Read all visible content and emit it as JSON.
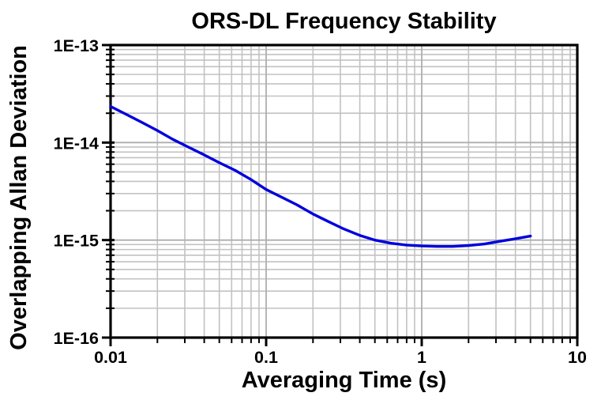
{
  "chart_data": {
    "type": "line",
    "title": "ORS-DL Frequency Stability",
    "xlabel": "Averaging Time (s)",
    "ylabel": "Overlapping Allan Deviation",
    "x_scale": "log",
    "y_scale": "log",
    "xlim": [
      0.01,
      10
    ],
    "ylim": [
      1e-16,
      1e-13
    ],
    "grid": "major and minor log gridlines, gray, full grid",
    "legend_position": "none",
    "x_ticks": [
      {
        "label": "0.01",
        "value": 0.01
      },
      {
        "label": "0.1",
        "value": 0.1
      },
      {
        "label": "1",
        "value": 1
      },
      {
        "label": "10",
        "value": 10
      }
    ],
    "y_ticks": [
      {
        "label": "1E-13",
        "value": 1e-13
      },
      {
        "label": "1E-14",
        "value": 1e-14
      },
      {
        "label": "1E-15",
        "value": 1e-15
      },
      {
        "label": "1E-16",
        "value": 1e-16
      }
    ],
    "series": [
      {
        "name": "overlapping-allan-deviation",
        "color": "#0000dd",
        "x": [
          0.01,
          0.0126,
          0.0158,
          0.02,
          0.0251,
          0.0316,
          0.0398,
          0.0501,
          0.0631,
          0.0794,
          0.1,
          0.126,
          0.158,
          0.2,
          0.251,
          0.316,
          0.398,
          0.501,
          0.631,
          0.794,
          1.0,
          1.26,
          1.58,
          2.0,
          2.51,
          3.16,
          3.98,
          5.0
        ],
        "y": [
          2.35e-14,
          1.95e-14,
          1.62e-14,
          1.33e-14,
          1.08e-14,
          9e-15,
          7.5e-15,
          6.2e-15,
          5.2e-15,
          4.2e-15,
          3.3e-15,
          2.75e-15,
          2.3e-15,
          1.85e-15,
          1.55e-15,
          1.3e-15,
          1.12e-15,
          1e-15,
          9.3e-16,
          8.9e-16,
          8.7e-16,
          8.6e-16,
          8.6e-16,
          8.8e-16,
          9.1e-16,
          9.7e-16,
          1.03e-15,
          1.1e-15
        ]
      }
    ]
  },
  "colors": {
    "background": "#ffffff",
    "curve": "#0000dd",
    "grid_minor": "#c2c2c2",
    "grid_major": "#aeaeae",
    "axis": "#000000",
    "text": "#000000"
  }
}
